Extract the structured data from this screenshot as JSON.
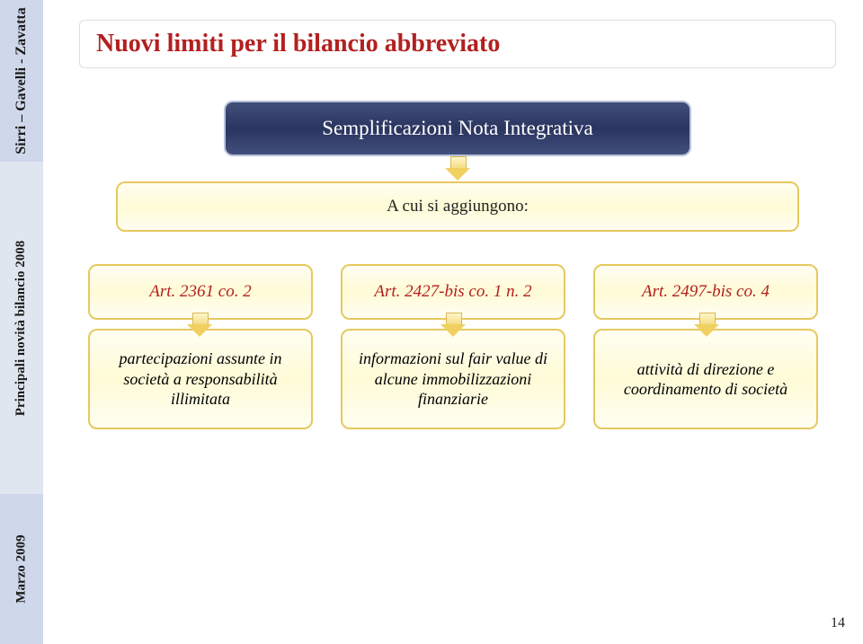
{
  "sidebar": {
    "label1": "Sirri – Gavelli - Zavatta",
    "label2": "Principali novità bilancio 2008",
    "label3": "Marzo 2009",
    "bg1": "#cfd7ea",
    "bg2": "#e0e6f0",
    "bg3": "#cfd7ea"
  },
  "title": {
    "text": "Nuovi limiti per il bilancio abbreviato",
    "color": "#b32020",
    "fontsize": 28
  },
  "center": {
    "text": "Semplificazioni Nota Integrativa",
    "bg_gradient": [
      "#414f7a",
      "#2a3560",
      "#414f7a"
    ],
    "border": "#b8c2d8",
    "text_color": "#ffffff"
  },
  "wide": {
    "text": "A cui si aggiungono:"
  },
  "articles": [
    {
      "ref": "Art. 2361 co. 2",
      "ref_color": "#b32020",
      "desc": "partecipazioni assunte in società a responsabilità illimitata"
    },
    {
      "ref": "Art. 2427-bis co. 1 n. 2",
      "ref_color": "#b32020",
      "desc": "informazioni sul fair value di alcune immobilizzazioni finanziarie"
    },
    {
      "ref": "Art. 2497-bis co. 4",
      "ref_color": "#b32020",
      "desc": "attività di direzione e coordinamento di società"
    }
  ],
  "box_style": {
    "border_color": "#e6c95e",
    "bg_gradient": [
      "#fffef2",
      "#fffbd6",
      "#fffef2"
    ]
  },
  "arrow_style": {
    "fill_gradient": [
      "#fff6c9",
      "#f3d97a"
    ],
    "border": "#d8b955"
  },
  "page_number": "14"
}
